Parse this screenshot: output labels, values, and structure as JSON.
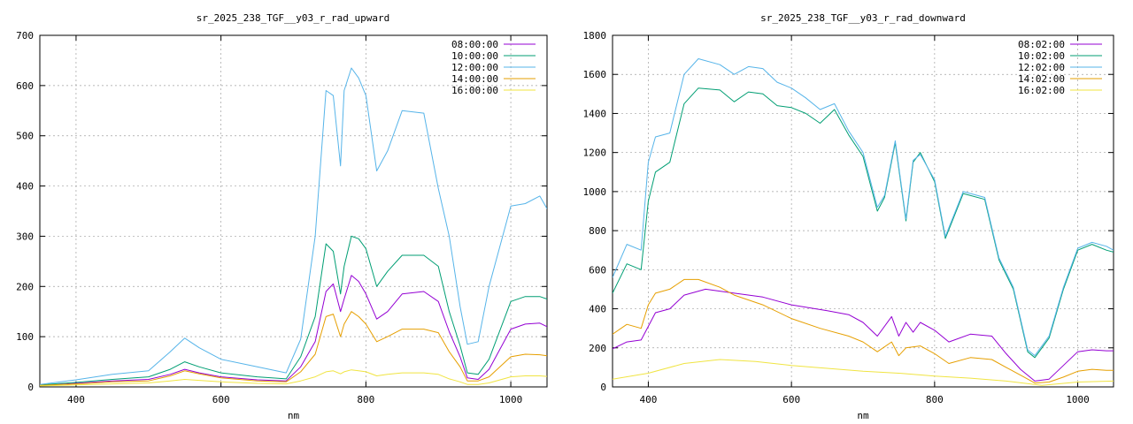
{
  "chart_data": [
    {
      "type": "line",
      "title": "sr_2025_238_TGF__y03_r_rad_upward",
      "xlabel": "nm",
      "ylabel": "",
      "xlim": [
        350,
        1050
      ],
      "ylim": [
        0,
        700
      ],
      "xticks": [
        400,
        600,
        800,
        1000
      ],
      "yticks": [
        0,
        100,
        200,
        300,
        400,
        500,
        600,
        700
      ],
      "grid": true,
      "legend_position": "top-right",
      "series": [
        {
          "name": "08:00:00",
          "color": "#9400d3",
          "x": [
            350,
            400,
            450,
            500,
            530,
            550,
            570,
            600,
            650,
            690,
            710,
            730,
            745,
            755,
            765,
            770,
            780,
            790,
            800,
            815,
            830,
            850,
            880,
            900,
            915,
            930,
            940,
            955,
            970,
            1000,
            1020,
            1040,
            1050
          ],
          "y": [
            3,
            7,
            12,
            15,
            25,
            35,
            28,
            20,
            14,
            12,
            40,
            90,
            190,
            205,
            150,
            175,
            222,
            210,
            185,
            135,
            150,
            185,
            190,
            170,
            110,
            60,
            18,
            15,
            35,
            115,
            125,
            127,
            120
          ]
        },
        {
          "name": "10:00:00",
          "color": "#009e73",
          "x": [
            350,
            400,
            450,
            500,
            530,
            550,
            570,
            600,
            650,
            690,
            710,
            730,
            745,
            755,
            765,
            770,
            780,
            790,
            800,
            815,
            830,
            850,
            880,
            900,
            915,
            930,
            940,
            955,
            970,
            1000,
            1020,
            1040,
            1050
          ],
          "y": [
            4,
            9,
            15,
            20,
            35,
            50,
            40,
            28,
            20,
            16,
            60,
            140,
            285,
            270,
            185,
            240,
            300,
            295,
            275,
            200,
            230,
            262,
            262,
            240,
            150,
            82,
            28,
            25,
            55,
            170,
            180,
            180,
            175
          ]
        },
        {
          "name": "12:00:00",
          "color": "#56b4e9",
          "x": [
            350,
            400,
            450,
            500,
            530,
            550,
            570,
            600,
            650,
            690,
            710,
            730,
            745,
            755,
            765,
            770,
            780,
            790,
            800,
            815,
            830,
            850,
            880,
            900,
            915,
            930,
            940,
            955,
            970,
            1000,
            1020,
            1040,
            1050
          ],
          "y": [
            5,
            14,
            25,
            32,
            70,
            97,
            78,
            55,
            40,
            28,
            95,
            300,
            590,
            580,
            440,
            590,
            635,
            615,
            580,
            430,
            470,
            550,
            545,
            395,
            300,
            160,
            85,
            90,
            200,
            360,
            365,
            380,
            355
          ]
        },
        {
          "name": "14:00:00",
          "color": "#e69f00",
          "x": [
            350,
            400,
            450,
            500,
            530,
            550,
            570,
            600,
            650,
            690,
            710,
            730,
            745,
            755,
            765,
            770,
            780,
            790,
            800,
            815,
            830,
            850,
            880,
            900,
            915,
            930,
            940,
            955,
            970,
            1000,
            1020,
            1040,
            1050
          ],
          "y": [
            3,
            6,
            10,
            12,
            22,
            32,
            26,
            18,
            12,
            10,
            30,
            65,
            140,
            145,
            100,
            125,
            150,
            140,
            125,
            90,
            100,
            115,
            115,
            108,
            70,
            40,
            12,
            12,
            20,
            60,
            65,
            64,
            62
          ]
        },
        {
          "name": "16:00:00",
          "color": "#f0e442",
          "x": [
            350,
            400,
            450,
            500,
            530,
            550,
            570,
            600,
            650,
            690,
            710,
            730,
            745,
            755,
            765,
            770,
            780,
            790,
            800,
            815,
            830,
            850,
            880,
            900,
            915,
            930,
            940,
            955,
            970,
            1000,
            1020,
            1040,
            1050
          ],
          "y": [
            2,
            4,
            6,
            8,
            12,
            15,
            13,
            10,
            7,
            6,
            12,
            20,
            30,
            32,
            26,
            30,
            34,
            32,
            30,
            22,
            25,
            28,
            28,
            25,
            16,
            10,
            5,
            5,
            8,
            20,
            22,
            22,
            21
          ]
        }
      ]
    },
    {
      "type": "line",
      "title": "sr_2025_238_TGF__y03_r_rad_downward",
      "xlabel": "nm",
      "ylabel": "",
      "xlim": [
        350,
        1050
      ],
      "ylim": [
        0,
        1800
      ],
      "xticks": [
        400,
        600,
        800,
        1000
      ],
      "yticks": [
        0,
        200,
        400,
        600,
        800,
        1000,
        1200,
        1400,
        1600,
        1800
      ],
      "grid": true,
      "legend_position": "top-right",
      "series": [
        {
          "name": "08:02:00",
          "color": "#9400d3",
          "x": [
            350,
            370,
            390,
            400,
            410,
            430,
            450,
            480,
            520,
            560,
            600,
            650,
            680,
            700,
            720,
            740,
            750,
            760,
            770,
            780,
            800,
            820,
            850,
            880,
            900,
            920,
            940,
            960,
            980,
            1000,
            1020,
            1040,
            1050
          ],
          "y": [
            195,
            230,
            240,
            310,
            380,
            400,
            470,
            500,
            480,
            460,
            420,
            390,
            370,
            330,
            260,
            360,
            260,
            330,
            280,
            330,
            290,
            230,
            270,
            260,
            170,
            90,
            30,
            40,
            110,
            180,
            190,
            185,
            185
          ]
        },
        {
          "name": "10:02:00",
          "color": "#009e73",
          "x": [
            350,
            370,
            390,
            400,
            410,
            430,
            450,
            470,
            500,
            520,
            540,
            560,
            580,
            600,
            620,
            640,
            660,
            680,
            700,
            720,
            730,
            745,
            760,
            770,
            780,
            800,
            815,
            840,
            870,
            890,
            910,
            930,
            940,
            960,
            980,
            1000,
            1020,
            1040,
            1050
          ],
          "y": [
            480,
            630,
            600,
            950,
            1100,
            1150,
            1450,
            1530,
            1520,
            1460,
            1510,
            1500,
            1440,
            1430,
            1400,
            1350,
            1420,
            1290,
            1180,
            900,
            970,
            1250,
            850,
            1150,
            1200,
            1050,
            760,
            990,
            960,
            650,
            500,
            180,
            150,
            250,
            500,
            700,
            730,
            700,
            690
          ]
        },
        {
          "name": "12:02:00",
          "color": "#56b4e9",
          "x": [
            350,
            370,
            390,
            400,
            410,
            430,
            450,
            470,
            500,
            520,
            540,
            560,
            580,
            600,
            620,
            640,
            660,
            680,
            700,
            720,
            730,
            745,
            760,
            770,
            780,
            800,
            815,
            840,
            870,
            890,
            910,
            930,
            940,
            960,
            980,
            1000,
            1020,
            1040,
            1050
          ],
          "y": [
            560,
            730,
            700,
            1150,
            1280,
            1300,
            1600,
            1680,
            1650,
            1600,
            1640,
            1630,
            1560,
            1530,
            1480,
            1420,
            1450,
            1310,
            1200,
            920,
            980,
            1260,
            860,
            1160,
            1190,
            1060,
            770,
            1000,
            970,
            660,
            510,
            190,
            160,
            260,
            510,
            710,
            740,
            720,
            700
          ]
        },
        {
          "name": "14:02:00",
          "color": "#e69f00",
          "x": [
            350,
            370,
            390,
            400,
            410,
            430,
            450,
            470,
            500,
            520,
            560,
            600,
            640,
            680,
            700,
            720,
            740,
            750,
            760,
            780,
            800,
            820,
            850,
            880,
            900,
            920,
            940,
            960,
            980,
            1000,
            1020,
            1040,
            1050
          ],
          "y": [
            270,
            320,
            300,
            420,
            480,
            500,
            550,
            550,
            510,
            470,
            420,
            350,
            300,
            260,
            230,
            180,
            230,
            160,
            200,
            210,
            170,
            120,
            150,
            140,
            100,
            60,
            20,
            25,
            50,
            80,
            90,
            85,
            85
          ]
        },
        {
          "name": "16:02:00",
          "color": "#f0e442",
          "x": [
            350,
            400,
            450,
            500,
            550,
            600,
            650,
            700,
            750,
            800,
            850,
            900,
            950,
            1000,
            1050
          ],
          "y": [
            40,
            70,
            120,
            140,
            130,
            110,
            95,
            80,
            70,
            55,
            45,
            30,
            8,
            25,
            30
          ]
        }
      ]
    }
  ]
}
